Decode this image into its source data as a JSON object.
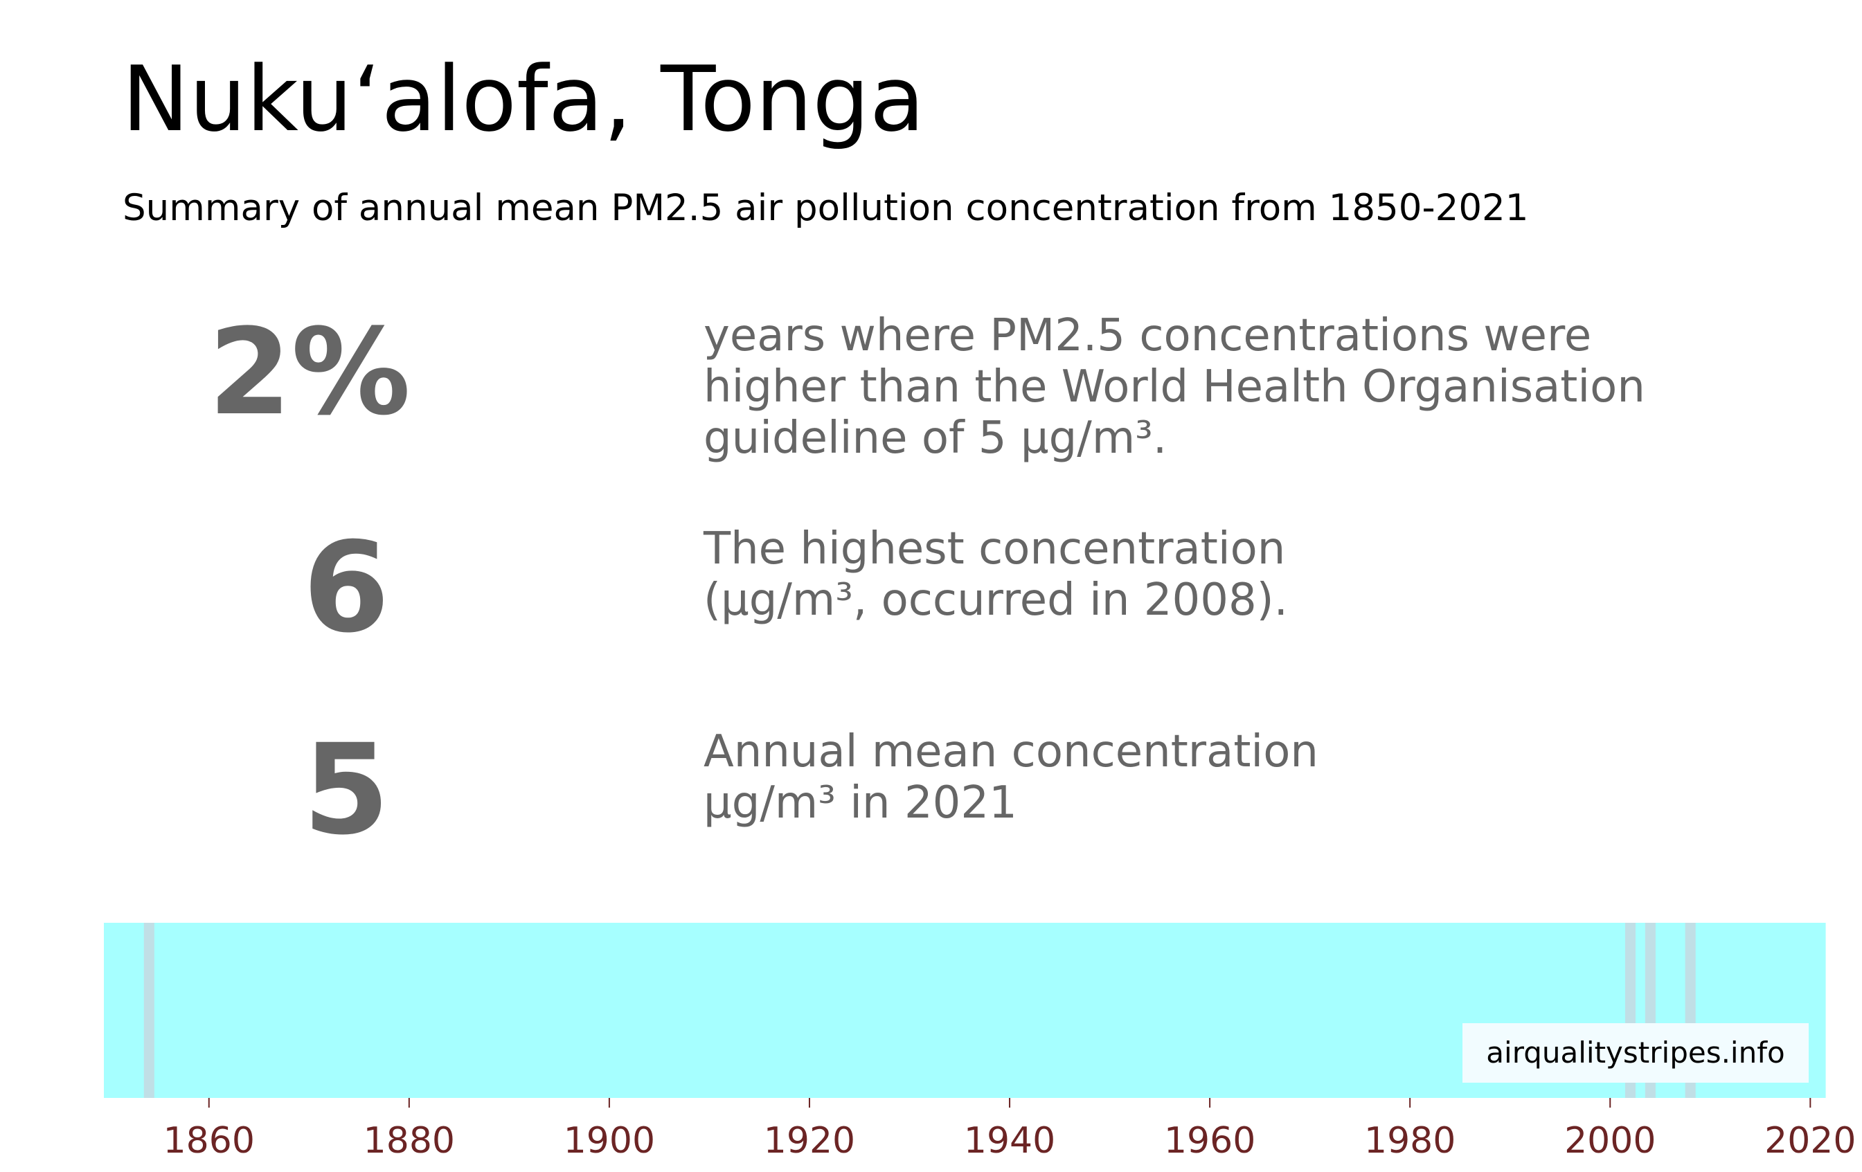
{
  "header": {
    "title": "Nuku‘alofa, Tonga",
    "subtitle": "Summary of annual mean PM2.5 air pollution concentration from 1850-2021"
  },
  "stats": [
    {
      "value": "2%",
      "lines": [
        "years where PM2.5 concentrations were",
        "higher than the World Health Organisation",
        "guideline of 5 µg/m³."
      ]
    },
    {
      "value": "6",
      "lines": [
        "The highest concentration",
        "(µg/m³, occurred in 2008)."
      ]
    },
    {
      "value": "5",
      "lines": [
        "Annual mean concentration",
        "µg/m³ in 2021"
      ]
    }
  ],
  "watermark": "airqualitystripes.info",
  "colors": {
    "text_stat": "#666666",
    "tick_label": "#6b2424",
    "stripe_base": "#a6ffff",
    "stripe_high": "#c0dfe6"
  },
  "chart_data": {
    "type": "heatmap",
    "title": "",
    "xlabel": "",
    "ylabel": "",
    "x_range": [
      1850,
      2021
    ],
    "xticks": [
      1860,
      1880,
      1900,
      1920,
      1940,
      1960,
      1980,
      2000,
      2020
    ],
    "grid": false,
    "base_value": 5,
    "highlighted_years": [
      {
        "year": 1854,
        "value": 6
      },
      {
        "year": 2002,
        "value": 6
      },
      {
        "year": 2004,
        "value": 6
      },
      {
        "year": 2008,
        "value": 6
      },
      {
        "year": 2021,
        "value": 5
      }
    ]
  }
}
